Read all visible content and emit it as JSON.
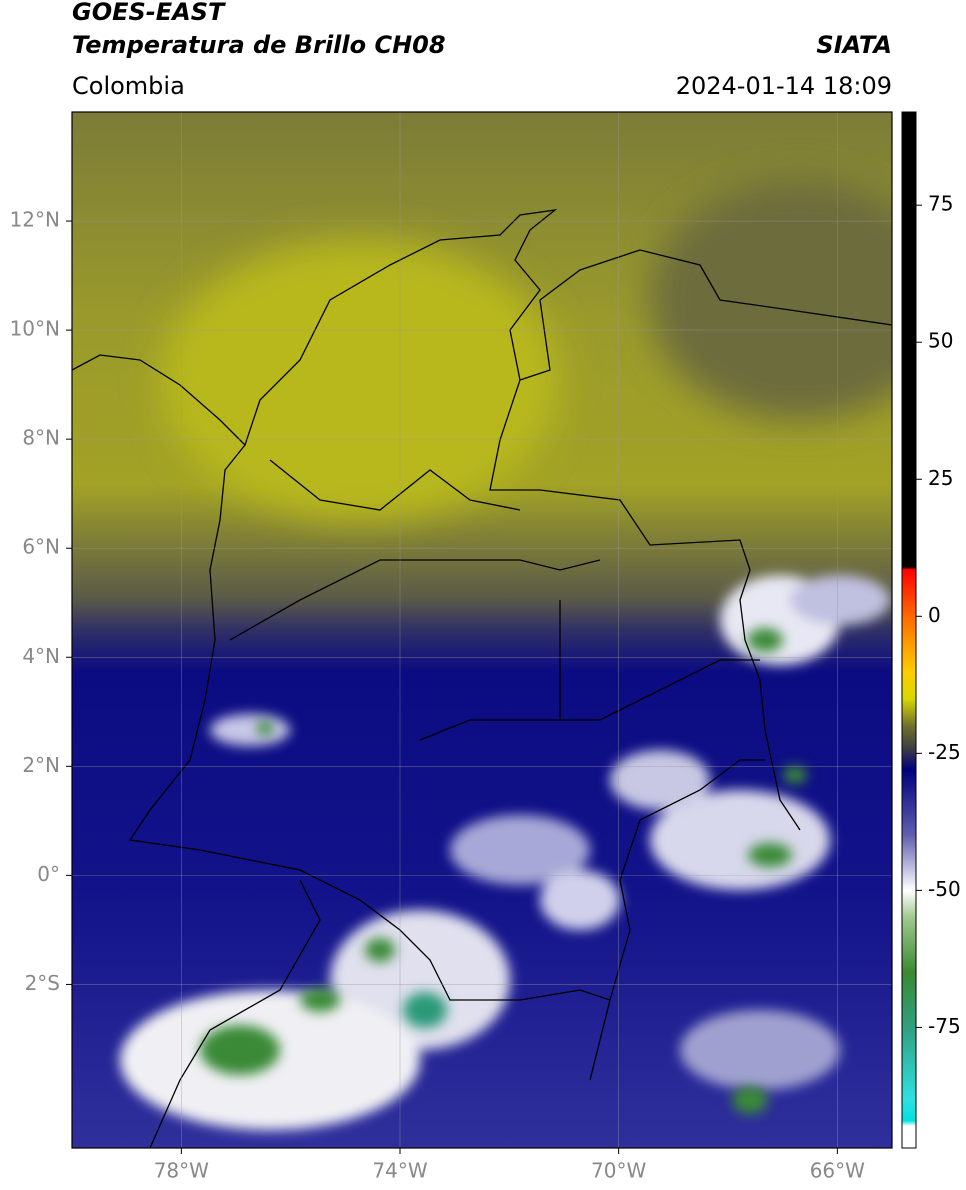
{
  "header": {
    "title": "GOES-EAST",
    "subtitle": "Temperatura de Brillo CH08",
    "source": "SIATA",
    "region": "Colombia",
    "datetime": "2024-01-14 18:09"
  },
  "map": {
    "xlim": [
      -80,
      -65
    ],
    "ylim": [
      -5,
      14
    ],
    "xticks": [
      {
        "value": -78,
        "label": "78°W"
      },
      {
        "value": -74,
        "label": "74°W"
      },
      {
        "value": -70,
        "label": "70°W"
      },
      {
        "value": -66,
        "label": "66°W"
      }
    ],
    "yticks": [
      {
        "value": 12,
        "label": "12°N"
      },
      {
        "value": 10,
        "label": "10°N"
      },
      {
        "value": 8,
        "label": "8°N"
      },
      {
        "value": 6,
        "label": "6°N"
      },
      {
        "value": 4,
        "label": "4°N"
      },
      {
        "value": 2,
        "label": "2°N"
      },
      {
        "value": 0,
        "label": "0°"
      },
      {
        "value": -2,
        "label": "2°S"
      }
    ],
    "grid": true
  },
  "colorbar": {
    "lim": [
      -97,
      92
    ],
    "ticks": [
      75,
      50,
      25,
      0,
      -25,
      -50,
      -75
    ],
    "stops": [
      {
        "value": 92,
        "color": "#000000"
      },
      {
        "value": 9,
        "color": "#000000"
      },
      {
        "value": 8.5,
        "color": "#ff0000"
      },
      {
        "value": 0,
        "color": "#ff6a00"
      },
      {
        "value": -10,
        "color": "#ffcc00"
      },
      {
        "value": -15,
        "color": "#d8d800"
      },
      {
        "value": -20,
        "color": "#707030"
      },
      {
        "value": -24,
        "color": "#404040"
      },
      {
        "value": -26,
        "color": "#202060"
      },
      {
        "value": -28,
        "color": "#000080"
      },
      {
        "value": -40,
        "color": "#6060b0"
      },
      {
        "value": -50,
        "color": "#ffffff"
      },
      {
        "value": -55,
        "color": "#a0c890"
      },
      {
        "value": -65,
        "color": "#3a8a30"
      },
      {
        "value": -75,
        "color": "#30a080"
      },
      {
        "value": -88,
        "color": "#30e0e0"
      },
      {
        "value": -92,
        "color": "#00e0e0"
      },
      {
        "value": -93,
        "color": "#ffffff"
      },
      {
        "value": -97,
        "color": "#ffffff"
      }
    ]
  }
}
